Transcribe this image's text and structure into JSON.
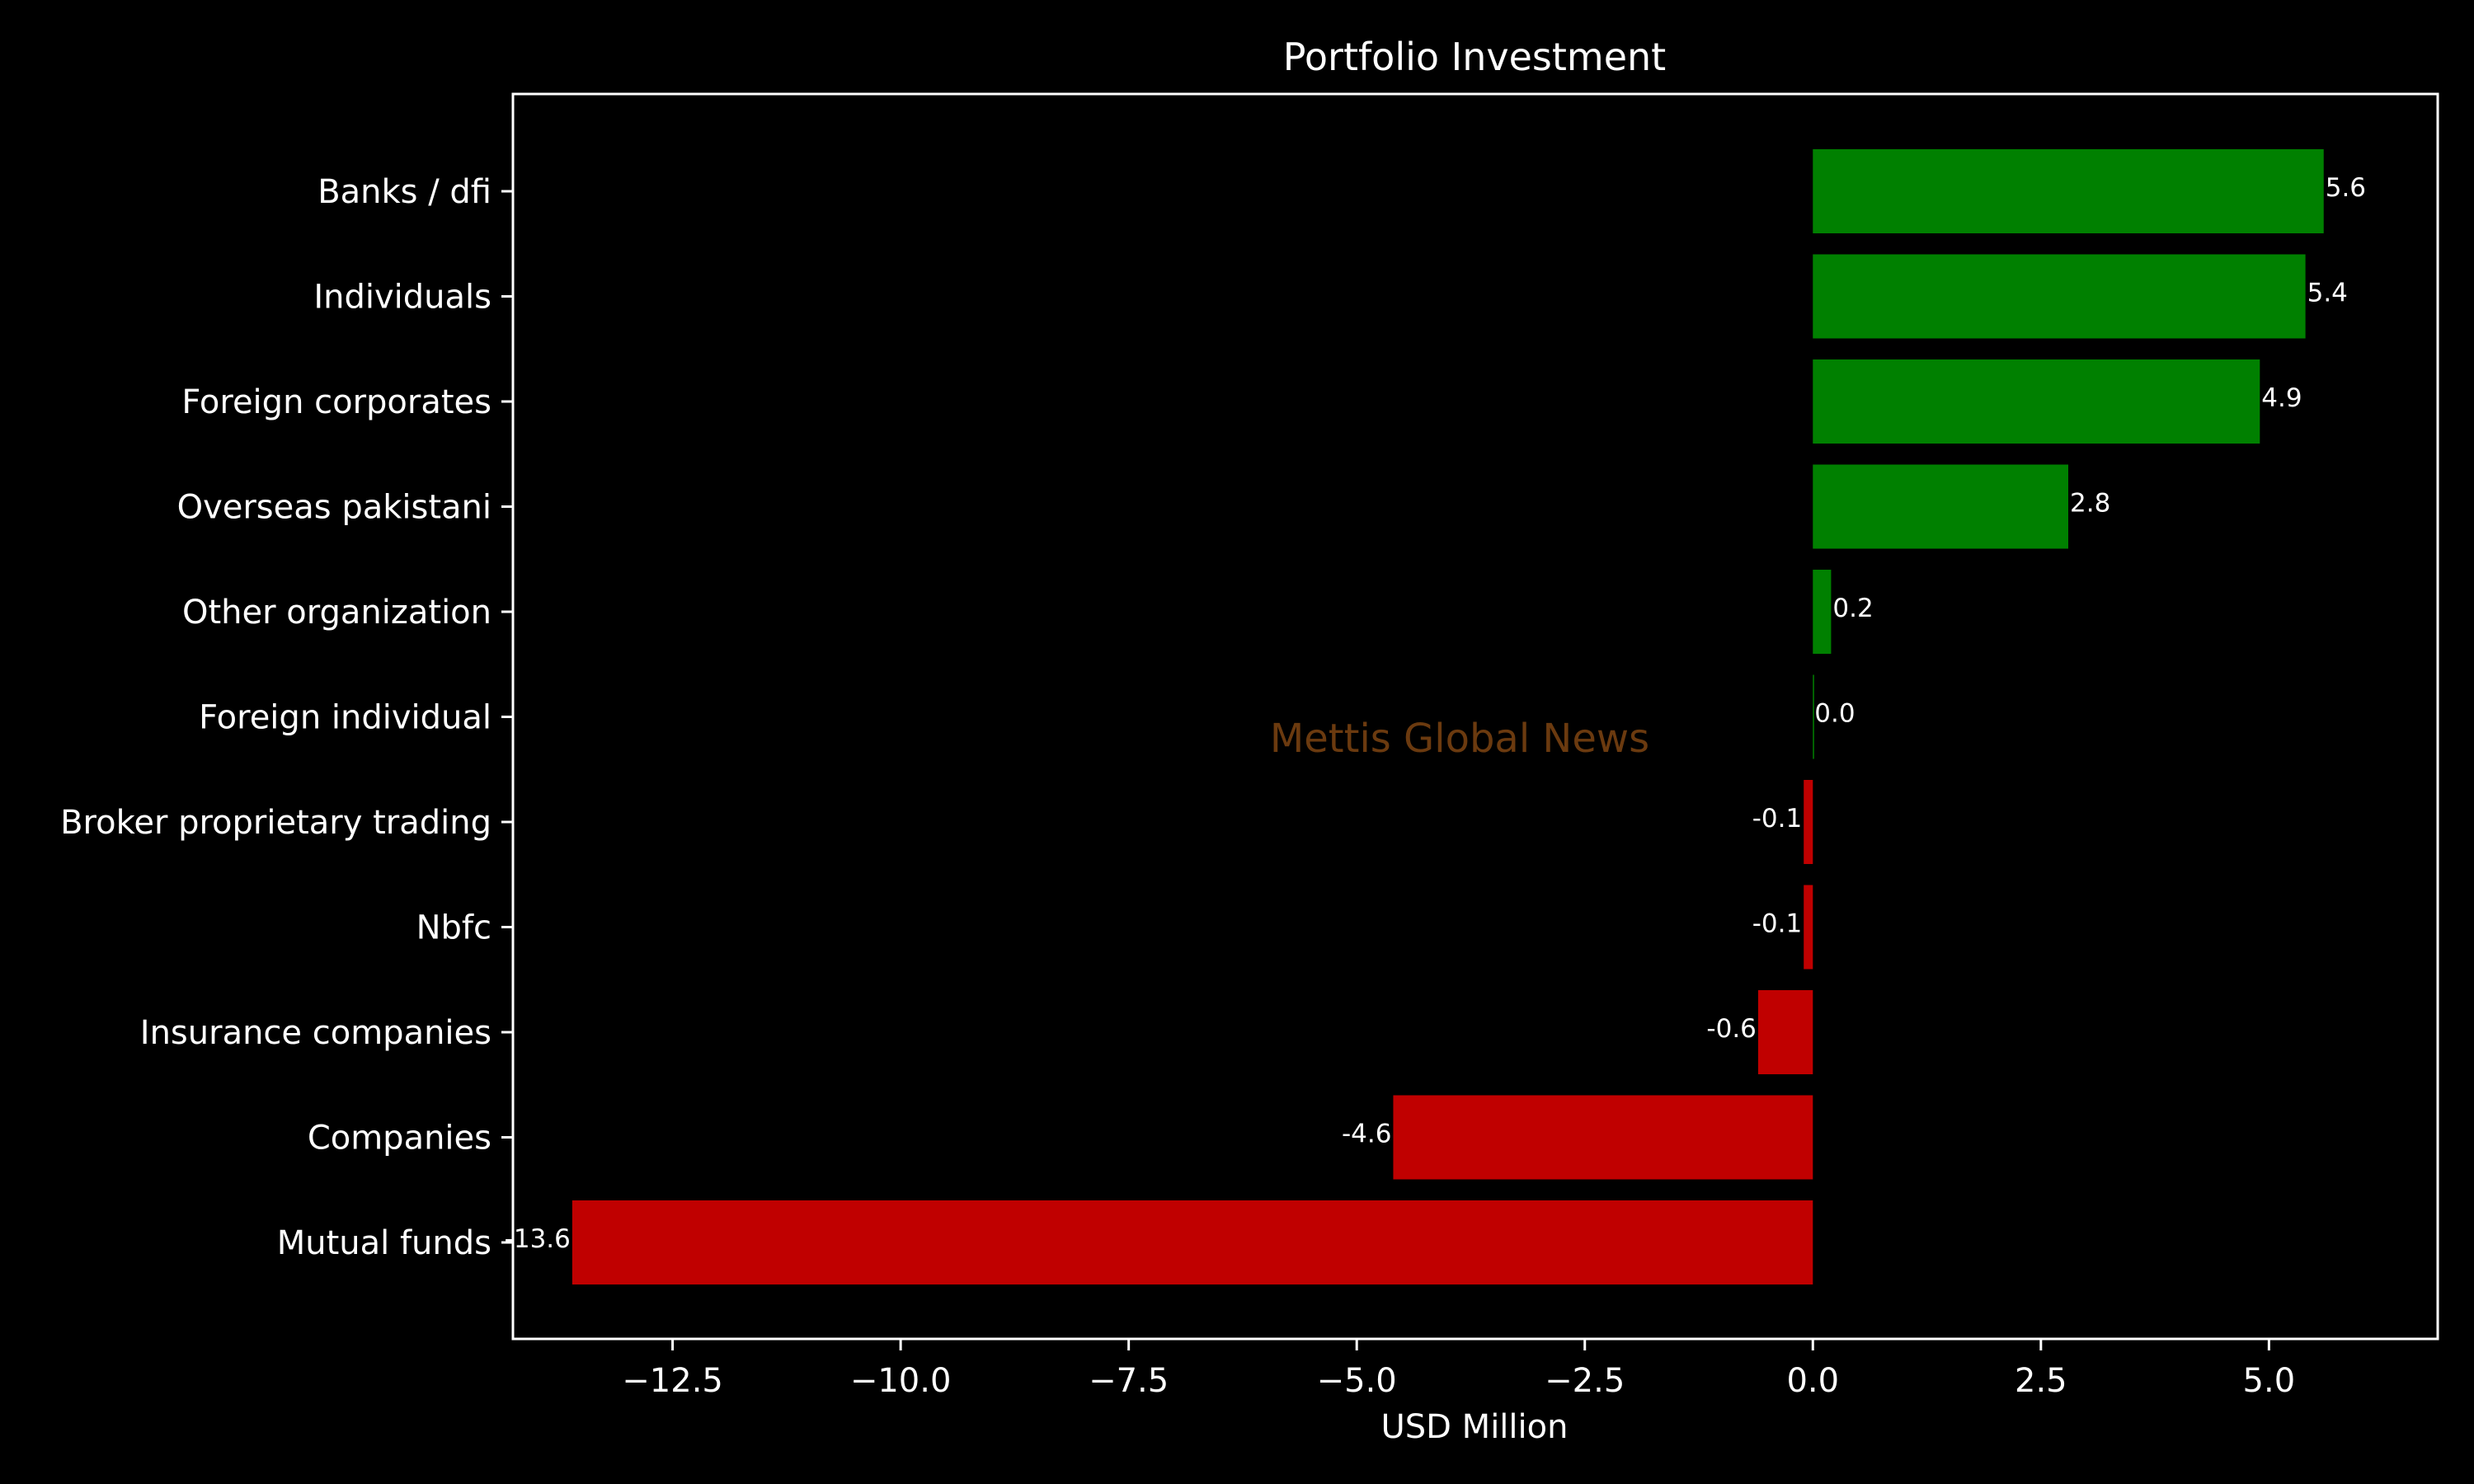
{
  "chart_data": {
    "type": "bar",
    "orientation": "horizontal",
    "title": "Portfolio Investment",
    "xlabel": "USD Million",
    "ylabel": "",
    "categories": [
      "Banks / dfi",
      "Individuals",
      "Foreign corporates ",
      "Overseas pakistani",
      "Other organization",
      "Foreign individual",
      "Broker proprietary trading",
      "Nbfc",
      "Insurance companies",
      "Companies",
      "Mutual funds"
    ],
    "values": [
      5.6,
      5.4,
      4.9,
      2.8,
      0.2,
      0.0,
      -0.1,
      -0.1,
      -0.6,
      -4.6,
      -13.6
    ],
    "value_labels": [
      "5.6",
      "5.4",
      "4.9",
      "2.8",
      "0.2",
      "0.0",
      "-0.1",
      "-0.1",
      "-0.6",
      "-4.6",
      "-13.6"
    ],
    "xlim": [
      -14.25,
      6.85
    ],
    "xticks": [
      -12.5,
      -10.0,
      -7.5,
      -5.0,
      -2.5,
      0.0,
      2.5,
      5.0
    ],
    "xtick_labels": [
      "−12.5",
      "−10.0",
      "−7.5",
      "−5.0",
      "−2.5",
      "0.0",
      "2.5",
      "5.0"
    ],
    "grid": false,
    "colors": {
      "positive": "#008000",
      "negative": "#c00000",
      "background": "#000000",
      "text": "#ffffff"
    },
    "watermark": "Mettis Global News"
  }
}
